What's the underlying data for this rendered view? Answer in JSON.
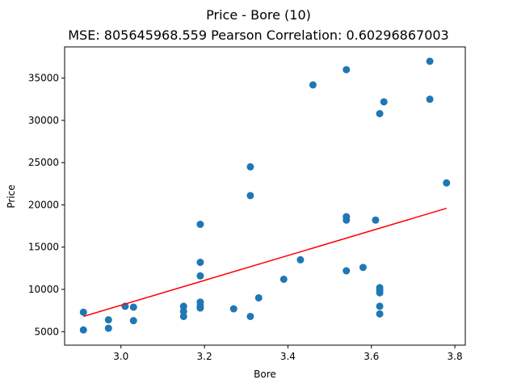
{
  "chart_data": {
    "type": "scatter",
    "title": "Price - Bore (10)",
    "subtitle": "MSE: 805645968.559 Pearson Correlation: 0.60296867003",
    "xlabel": "Bore",
    "ylabel": "Price",
    "xlim": [
      2.865,
      3.825
    ],
    "ylim": [
      3400,
      38700
    ],
    "x_ticks": [
      3.0,
      3.2,
      3.4,
      3.6,
      3.8
    ],
    "x_tick_labels": [
      "3.0",
      "3.2",
      "3.4",
      "3.6",
      "3.8"
    ],
    "y_ticks": [
      5000,
      10000,
      15000,
      20000,
      25000,
      30000,
      35000
    ],
    "y_tick_labels": [
      "5000",
      "10000",
      "15000",
      "20000",
      "25000",
      "30000",
      "35000"
    ],
    "grid": false,
    "series": [
      {
        "kind": "points",
        "color": "#1f77b4",
        "points": [
          [
            2.91,
            7300
          ],
          [
            2.91,
            5200
          ],
          [
            2.97,
            6400
          ],
          [
            2.97,
            5400
          ],
          [
            3.01,
            8000
          ],
          [
            3.03,
            7900
          ],
          [
            3.03,
            6300
          ],
          [
            3.15,
            8000
          ],
          [
            3.15,
            7400
          ],
          [
            3.15,
            6800
          ],
          [
            3.19,
            17700
          ],
          [
            3.19,
            13200
          ],
          [
            3.19,
            11600
          ],
          [
            3.19,
            8500
          ],
          [
            3.19,
            8100
          ],
          [
            3.19,
            7800
          ],
          [
            3.27,
            7700
          ],
          [
            3.31,
            24500
          ],
          [
            3.31,
            21100
          ],
          [
            3.31,
            6800
          ],
          [
            3.33,
            9000
          ],
          [
            3.39,
            11200
          ],
          [
            3.43,
            13500
          ],
          [
            3.46,
            34200
          ],
          [
            3.54,
            36000
          ],
          [
            3.54,
            18600
          ],
          [
            3.54,
            18200
          ],
          [
            3.54,
            12200
          ],
          [
            3.58,
            12600
          ],
          [
            3.61,
            18200
          ],
          [
            3.62,
            30800
          ],
          [
            3.62,
            10200
          ],
          [
            3.62,
            9900
          ],
          [
            3.62,
            9600
          ],
          [
            3.62,
            8000
          ],
          [
            3.62,
            7100
          ],
          [
            3.63,
            32200
          ],
          [
            3.74,
            37000
          ],
          [
            3.74,
            32500
          ],
          [
            3.78,
            22600
          ]
        ]
      },
      {
        "kind": "regression-line",
        "color": "#ff0000",
        "points": [
          [
            2.91,
            6800
          ],
          [
            3.78,
            19600
          ]
        ]
      }
    ]
  }
}
